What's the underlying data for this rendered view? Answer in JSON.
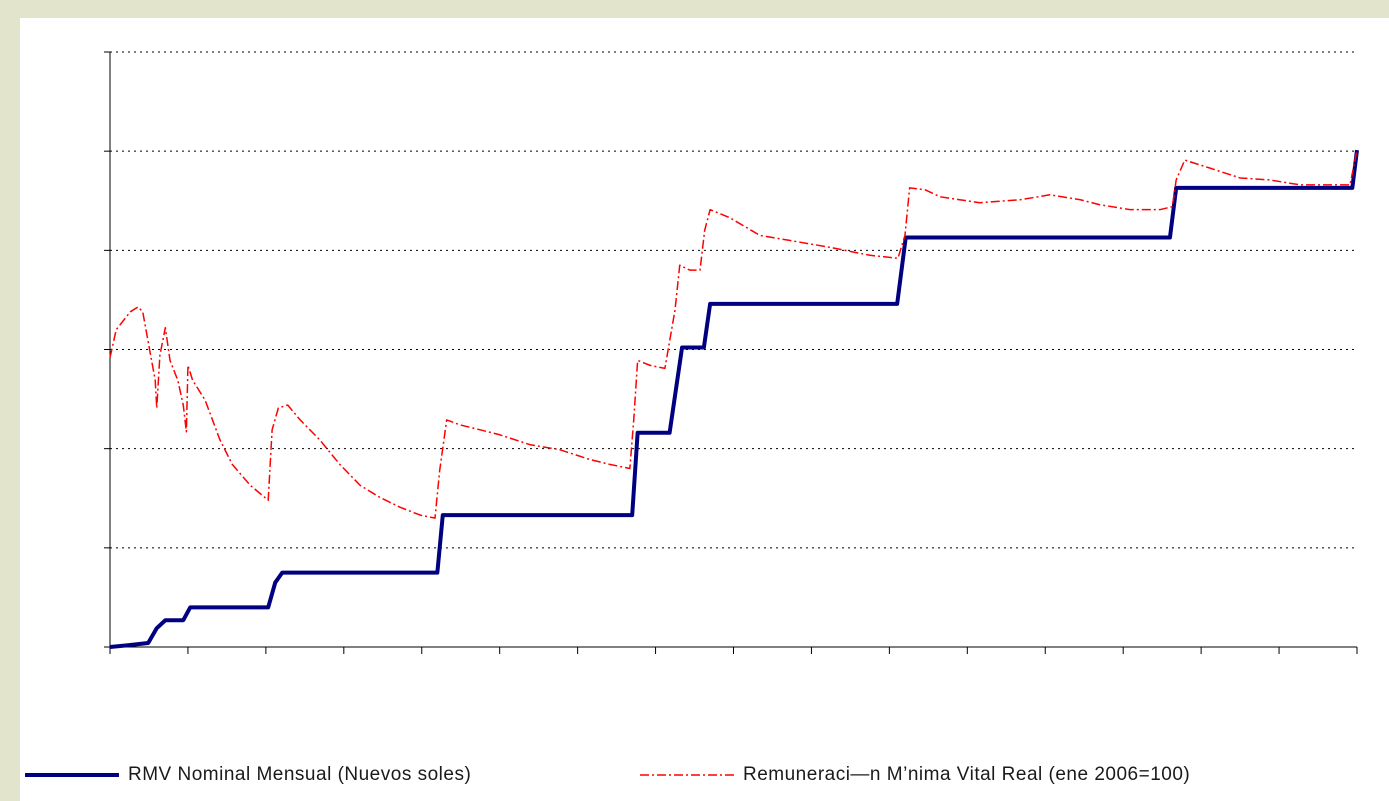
{
  "chart_data": {
    "type": "line",
    "xlim": [
      0,
      16
    ],
    "xticks": [
      0,
      1,
      2,
      3,
      4,
      5,
      6,
      7,
      8,
      9,
      10,
      11,
      12,
      13,
      14,
      15,
      16
    ],
    "ylim": [
      0,
      6
    ],
    "yticks": [
      0,
      1,
      2,
      3,
      4,
      5,
      6
    ],
    "grid": true,
    "series": [
      {
        "name": "RMV Nominal Mensual (Nuevos soles)",
        "color": "#000080",
        "style": "solid",
        "x": [
          0,
          0.26,
          0.49,
          0.6,
          0.71,
          0.94,
          1.03,
          2.03,
          2.12,
          2.21,
          4.2,
          4.27,
          6.7,
          6.77,
          7.18,
          7.34,
          7.62,
          7.7,
          10.1,
          10.21,
          13.6,
          13.68,
          15.94,
          16.0
        ],
        "values": [
          0,
          0.02,
          0.04,
          0.19,
          0.27,
          0.27,
          0.4,
          0.4,
          0.65,
          0.75,
          0.75,
          1.33,
          1.33,
          2.16,
          2.16,
          3.02,
          3.02,
          3.46,
          3.46,
          4.13,
          4.13,
          4.63,
          4.63,
          5.01
        ]
      },
      {
        "name": "Remuneraci—n M’nima Vital Real (ene 2006=100)",
        "color": "#ff0000",
        "style": "dashdot",
        "x": [
          0,
          0.08,
          0.26,
          0.36,
          0.42,
          0.51,
          0.58,
          0.6,
          0.64,
          0.71,
          0.77,
          0.87,
          0.94,
          0.98,
          1.0,
          1.06,
          1.22,
          1.41,
          1.57,
          1.8,
          2.03,
          2.08,
          2.16,
          2.28,
          2.44,
          2.69,
          2.95,
          3.21,
          3.46,
          3.72,
          3.98,
          4.17,
          4.23,
          4.32,
          4.49,
          4.75,
          5.0,
          5.39,
          5.77,
          6.16,
          6.42,
          6.67,
          6.72,
          6.77,
          6.93,
          7.12,
          7.25,
          7.31,
          7.44,
          7.57,
          7.63,
          7.7,
          7.95,
          8.34,
          8.72,
          9.24,
          9.75,
          10.11,
          10.2,
          10.26,
          10.46,
          10.65,
          11.16,
          11.68,
          12.06,
          12.45,
          12.7,
          13.09,
          13.47,
          13.63,
          13.68,
          13.79,
          14.11,
          14.5,
          14.88,
          15.27,
          15.91,
          16.0
        ],
        "values": [
          2.92,
          3.2,
          3.38,
          3.43,
          3.38,
          2.99,
          2.69,
          2.41,
          2.94,
          3.22,
          2.89,
          2.69,
          2.44,
          2.17,
          2.84,
          2.69,
          2.49,
          2.09,
          1.84,
          1.63,
          1.48,
          2.19,
          2.41,
          2.44,
          2.29,
          2.09,
          1.84,
          1.63,
          1.51,
          1.41,
          1.33,
          1.3,
          1.78,
          2.29,
          2.24,
          2.19,
          2.14,
          2.04,
          1.99,
          1.89,
          1.84,
          1.8,
          2.29,
          2.89,
          2.84,
          2.81,
          3.4,
          3.85,
          3.8,
          3.8,
          4.2,
          4.41,
          4.33,
          4.15,
          4.1,
          4.03,
          3.95,
          3.92,
          4.15,
          4.63,
          4.61,
          4.54,
          4.48,
          4.51,
          4.56,
          4.51,
          4.46,
          4.41,
          4.41,
          4.44,
          4.71,
          4.91,
          4.83,
          4.73,
          4.71,
          4.66,
          4.66,
          5.01
        ]
      }
    ]
  }
}
